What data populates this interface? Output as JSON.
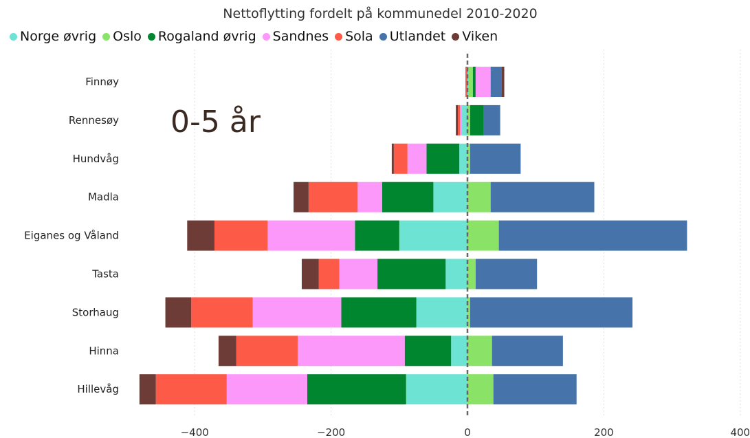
{
  "chart_data": {
    "type": "bar",
    "orientation": "horizontal",
    "stacked": true,
    "title": "Nettoflytting fordelt på kommunedel 2010-2020",
    "annotation": "0-5 år",
    "categories": [
      "Finnøy",
      "Rennesøy",
      "Hundvåg",
      "Madla",
      "Eiganes og Våland",
      "Tasta",
      "Storhaug",
      "Hinna",
      "Hillevåg"
    ],
    "xlim": [
      -490,
      400
    ],
    "xticks": [
      -400,
      -200,
      0,
      200,
      400
    ],
    "xtick_labels": [
      "−400",
      "−200",
      "0",
      "200",
      "400"
    ],
    "grid": "vertical dotted",
    "zero_line": "dashed",
    "legend_position": "top",
    "series": [
      {
        "name": "Norge øvrig",
        "color": "#6ce3d3",
        "values": [
          2,
          -8,
          -12,
          -50,
          -100,
          -32,
          -75,
          -24,
          -90
        ]
      },
      {
        "name": "Oslo",
        "color": "#8ae266",
        "values": [
          6,
          4,
          4,
          34,
          46,
          12,
          4,
          36,
          38
        ]
      },
      {
        "name": "Rogaland øvrig",
        "color": "#00862f",
        "values": [
          4,
          20,
          -48,
          -75,
          -65,
          -100,
          -110,
          -68,
          -145
        ]
      },
      {
        "name": "Sandnes",
        "color": "#fd98fb",
        "values": [
          22,
          -3,
          -28,
          -36,
          -128,
          -56,
          -130,
          -157,
          -118
        ]
      },
      {
        "name": "Sola",
        "color": "#fe5a48",
        "values": [
          -3,
          -3,
          -20,
          -72,
          -78,
          -30,
          -90,
          -90,
          -104
        ]
      },
      {
        "name": "Utlandet",
        "color": "#4674aa",
        "values": [
          16,
          24,
          74,
          152,
          276,
          90,
          238,
          104,
          122
        ]
      },
      {
        "name": "Viken",
        "color": "#6e3c37",
        "values": [
          4,
          -3,
          -3,
          -22,
          -40,
          -25,
          -38,
          -26,
          -24
        ]
      }
    ]
  }
}
